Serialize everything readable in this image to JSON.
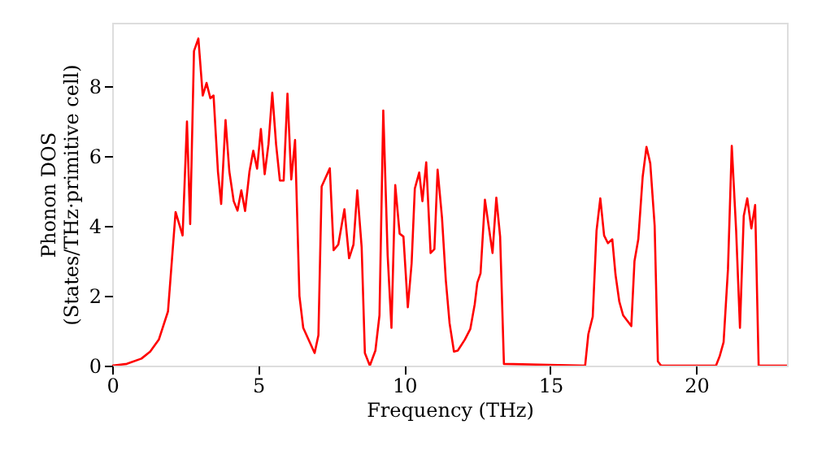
{
  "chart_data": {
    "type": "line",
    "xlabel": "Frequency (THz)",
    "ylabel": "Phonon DOS\n(States/THz·primitive cell)",
    "xlim": [
      0,
      23.1
    ],
    "ylim": [
      0,
      9.8
    ],
    "xticks": [
      0,
      5,
      10,
      15,
      20
    ],
    "yticks": [
      0,
      2,
      4,
      6,
      8
    ],
    "grid": false,
    "marker": "none",
    "line_style": "solid",
    "series": [
      {
        "color": "#ff0000",
        "x": [
          0,
          0.5,
          1.0,
          1.3,
          1.6,
          1.91,
          2.17,
          2.41,
          2.56,
          2.67,
          2.8,
          2.95,
          3.1,
          3.23,
          3.36,
          3.47,
          3.62,
          3.73,
          3.88,
          4.01,
          4.16,
          4.29,
          4.42,
          4.55,
          4.7,
          4.83,
          4.96,
          5.09,
          5.22,
          5.35,
          5.48,
          5.61,
          5.74,
          5.87,
          6.0,
          6.13,
          6.26,
          6.41,
          6.54,
          6.93,
          7.06,
          7.17,
          7.45,
          7.58,
          7.74,
          7.95,
          8.11,
          8.26,
          8.39,
          8.54,
          8.65,
          8.82,
          9.01,
          9.15,
          9.28,
          9.43,
          9.56,
          9.69,
          9.84,
          9.97,
          10.12,
          10.25,
          10.36,
          10.51,
          10.62,
          10.75,
          10.9,
          11.03,
          11.14,
          11.29,
          11.42,
          11.55,
          11.7,
          11.83,
          12.07,
          12.26,
          12.41,
          12.5,
          12.61,
          12.76,
          13.02,
          13.15,
          13.28,
          13.41,
          16.19,
          16.3,
          16.45,
          16.58,
          16.71,
          16.84,
          16.97,
          17.12,
          17.23,
          17.36,
          17.49,
          17.77,
          17.88,
          18.01,
          18.16,
          18.29,
          18.42,
          18.57,
          18.68,
          18.79,
          20.67,
          20.8,
          20.93,
          21.08,
          21.21,
          21.36,
          21.49,
          21.62,
          21.74,
          21.88,
          22.01,
          22.13,
          23.1
        ],
        "values": [
          0,
          0.05,
          0.2,
          0.4,
          0.75,
          1.55,
          4.39,
          3.72,
          6.98,
          4.05,
          8.99,
          9.35,
          7.72,
          8.08,
          7.64,
          7.72,
          5.55,
          4.62,
          7.02,
          5.55,
          4.7,
          4.43,
          5.01,
          4.42,
          5.55,
          6.14,
          5.63,
          6.76,
          5.47,
          6.33,
          7.8,
          6.33,
          5.29,
          5.29,
          7.77,
          5.32,
          6.45,
          1.99,
          1.08,
          0.36,
          0.87,
          5.12,
          5.64,
          3.3,
          3.46,
          4.47,
          3.07,
          3.46,
          5.01,
          3.38,
          0.36,
          0,
          0.43,
          1.44,
          7.29,
          3.15,
          1.08,
          5.16,
          3.77,
          3.69,
          1.67,
          2.92,
          5.06,
          5.52,
          4.7,
          5.81,
          3.22,
          3.33,
          5.6,
          4.23,
          2.45,
          1.21,
          0.4,
          0.43,
          0.74,
          1.05,
          1.75,
          2.37,
          2.64,
          4.74,
          3.22,
          4.8,
          3.69,
          0.05,
          0,
          0.9,
          1.4,
          3.85,
          4.78,
          3.72,
          3.5,
          3.61,
          2.6,
          1.83,
          1.44,
          1.13,
          2.99,
          3.61,
          5.4,
          6.25,
          5.78,
          4.0,
          0.12,
          0,
          0,
          0.28,
          0.67,
          2.76,
          6.28,
          3.85,
          1.08,
          4.28,
          4.78,
          3.92,
          4.59,
          0,
          0
        ]
      }
    ]
  }
}
